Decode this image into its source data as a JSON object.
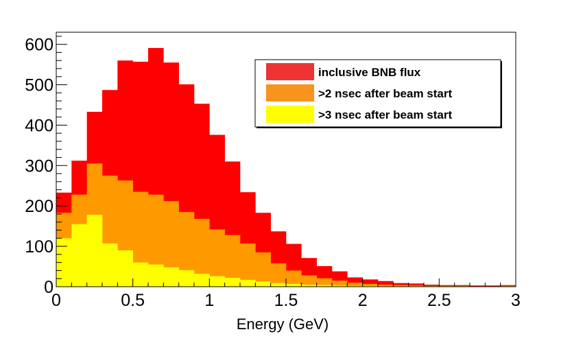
{
  "chart_data": {
    "type": "bar",
    "title": "",
    "xlabel": "Energy (GeV)",
    "ylabel": "",
    "xlim": [
      0,
      3
    ],
    "ylim": [
      0,
      630
    ],
    "bin_width": 0.1,
    "x_ticks": [
      0,
      0.5,
      1,
      1.5,
      2,
      2.5,
      3
    ],
    "x_tick_labels": [
      "0",
      "0.5",
      "1",
      "1.5",
      "2",
      "2.5",
      "3"
    ],
    "y_ticks": [
      0,
      100,
      200,
      300,
      400,
      500,
      600
    ],
    "y_tick_labels": [
      "0",
      "100",
      "200",
      "300",
      "400",
      "500",
      "600"
    ],
    "grid": false,
    "legend_position": "top-right",
    "x": [
      0.05,
      0.15,
      0.25,
      0.35,
      0.45,
      0.55,
      0.65,
      0.75,
      0.85,
      0.95,
      1.05,
      1.15,
      1.25,
      1.35,
      1.45,
      1.55,
      1.65,
      1.75,
      1.85,
      1.95,
      2.05,
      2.15,
      2.25,
      2.35,
      2.45,
      2.55,
      2.65,
      2.75,
      2.85,
      2.95
    ],
    "series": [
      {
        "name": "inclusive BNB flux",
        "color": "#ff0000",
        "legend_color": "#ee3333",
        "values": [
          233,
          312,
          433,
          487,
          560,
          557,
          591,
          555,
          501,
          453,
          376,
          310,
          234,
          183,
          137,
          106,
          71,
          51,
          38,
          23,
          18,
          14,
          9,
          8,
          5,
          4,
          4,
          3,
          3,
          4
        ]
      },
      {
        "name": ">2 nsec after beam start",
        "color": "#ff9900",
        "legend_color": "#f7941d",
        "values": [
          183,
          228,
          305,
          275,
          263,
          235,
          228,
          212,
          185,
          168,
          142,
          128,
          107,
          85,
          58,
          40,
          28,
          21,
          15,
          10,
          7,
          5,
          4,
          3,
          2,
          2,
          2,
          1,
          1,
          2
        ]
      },
      {
        "name": ">3 nsec after beam start",
        "color": "#ffff00",
        "legend_color": "#ffff00",
        "values": [
          120,
          155,
          178,
          107,
          90,
          60,
          55,
          48,
          41,
          32,
          26,
          22,
          17,
          13,
          9,
          7,
          5,
          4,
          3,
          2,
          2,
          1,
          1,
          1,
          1,
          1,
          1,
          0,
          0,
          1
        ]
      }
    ]
  }
}
